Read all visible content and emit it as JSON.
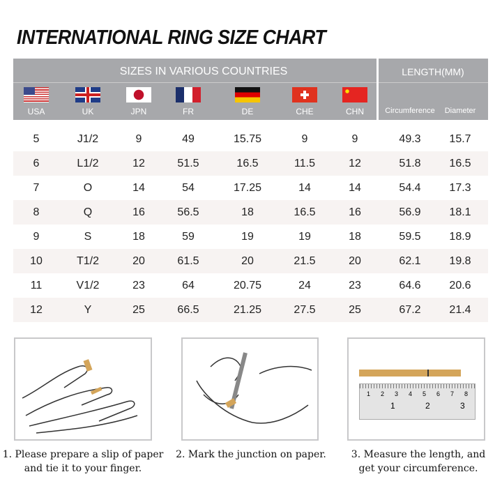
{
  "title": "INTERNATIONAL RING SIZE CHART",
  "header": {
    "sizes_label": "SIZES IN VARIOUS COUNTRIES",
    "length_label": "LENGTH(MM)",
    "countries": [
      {
        "code": "USA",
        "flag": "us-flag"
      },
      {
        "code": "UK",
        "flag": "uk-flag"
      },
      {
        "code": "JPN",
        "flag": "japan-flag"
      },
      {
        "code": "FR",
        "flag": "france-flag"
      },
      {
        "code": "DE",
        "flag": "germany-flag"
      },
      {
        "code": "CHE",
        "flag": "switzerland-flag"
      },
      {
        "code": "CHN",
        "flag": "china-flag"
      }
    ],
    "circumference": "Circumference",
    "diameter": "Diameter"
  },
  "rows": [
    [
      "5",
      "J1/2",
      "9",
      "49",
      "15.75",
      "9",
      "9",
      "49.3",
      "15.7"
    ],
    [
      "6",
      "L1/2",
      "12",
      "51.5",
      "16.5",
      "11.5",
      "12",
      "51.8",
      "16.5"
    ],
    [
      "7",
      "O",
      "14",
      "54",
      "17.25",
      "14",
      "14",
      "54.4",
      "17.3"
    ],
    [
      "8",
      "Q",
      "16",
      "56.5",
      "18",
      "16.5",
      "16",
      "56.9",
      "18.1"
    ],
    [
      "9",
      "S",
      "18",
      "59",
      "19",
      "19",
      "18",
      "59.5",
      "18.9"
    ],
    [
      "10",
      "T1/2",
      "20",
      "61.5",
      "20",
      "21.5",
      "20",
      "62.1",
      "19.8"
    ],
    [
      "11",
      "V1/2",
      "23",
      "64",
      "20.75",
      "24",
      "23",
      "64.6",
      "20.6"
    ],
    [
      "12",
      "Y",
      "25",
      "66.5",
      "21.25",
      "27.5",
      "25",
      "67.2",
      "21.4"
    ]
  ],
  "steps": [
    {
      "line1": "1. Please prepare a slip of paper",
      "line2": "and tie it to your finger."
    },
    {
      "line1": "2. Mark the junction on paper.",
      "line2": ""
    },
    {
      "line1": "3. Measure the length, and",
      "line2": "get your circumference."
    }
  ],
  "ruler": {
    "top_marks": [
      "1",
      "2",
      "3",
      "4",
      "5",
      "6",
      "7",
      "8"
    ],
    "bottom_marks": [
      "1",
      "2",
      "3"
    ]
  },
  "colors": {
    "header_bg": "#a7a8ab",
    "alt_row": "#f7f3f2",
    "paper": "#d4a55a"
  }
}
